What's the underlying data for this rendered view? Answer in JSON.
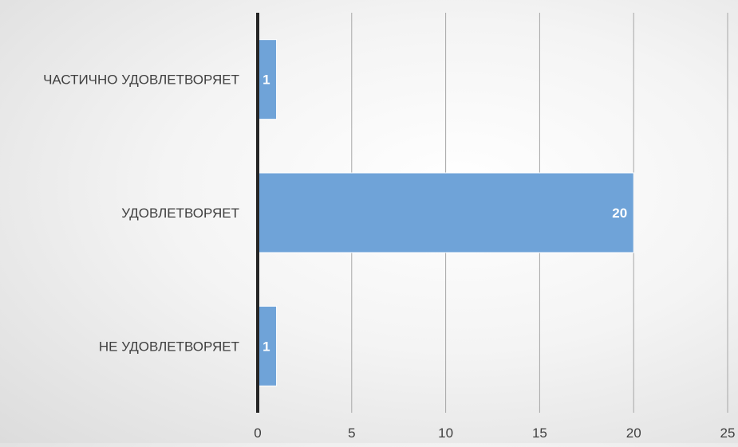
{
  "chart_data": {
    "type": "bar",
    "orientation": "horizontal",
    "categories": [
      "ЧАСТИЧНО УДОВЛЕТВОРЯЕТ",
      "УДОВЛЕТВОРЯЕТ",
      "НЕ УДОВЛЕТВОРЯЕТ"
    ],
    "values": [
      1,
      20,
      1
    ],
    "data_labels": [
      "1",
      "20",
      "1"
    ],
    "xlim": [
      0,
      25
    ],
    "x_ticks": [
      "0",
      "5",
      "10",
      "15",
      "20",
      "25"
    ],
    "grid": "vertical",
    "legend": "none",
    "bar_color": "#6fa3d8",
    "title": "",
    "xlabel": "",
    "ylabel": ""
  }
}
